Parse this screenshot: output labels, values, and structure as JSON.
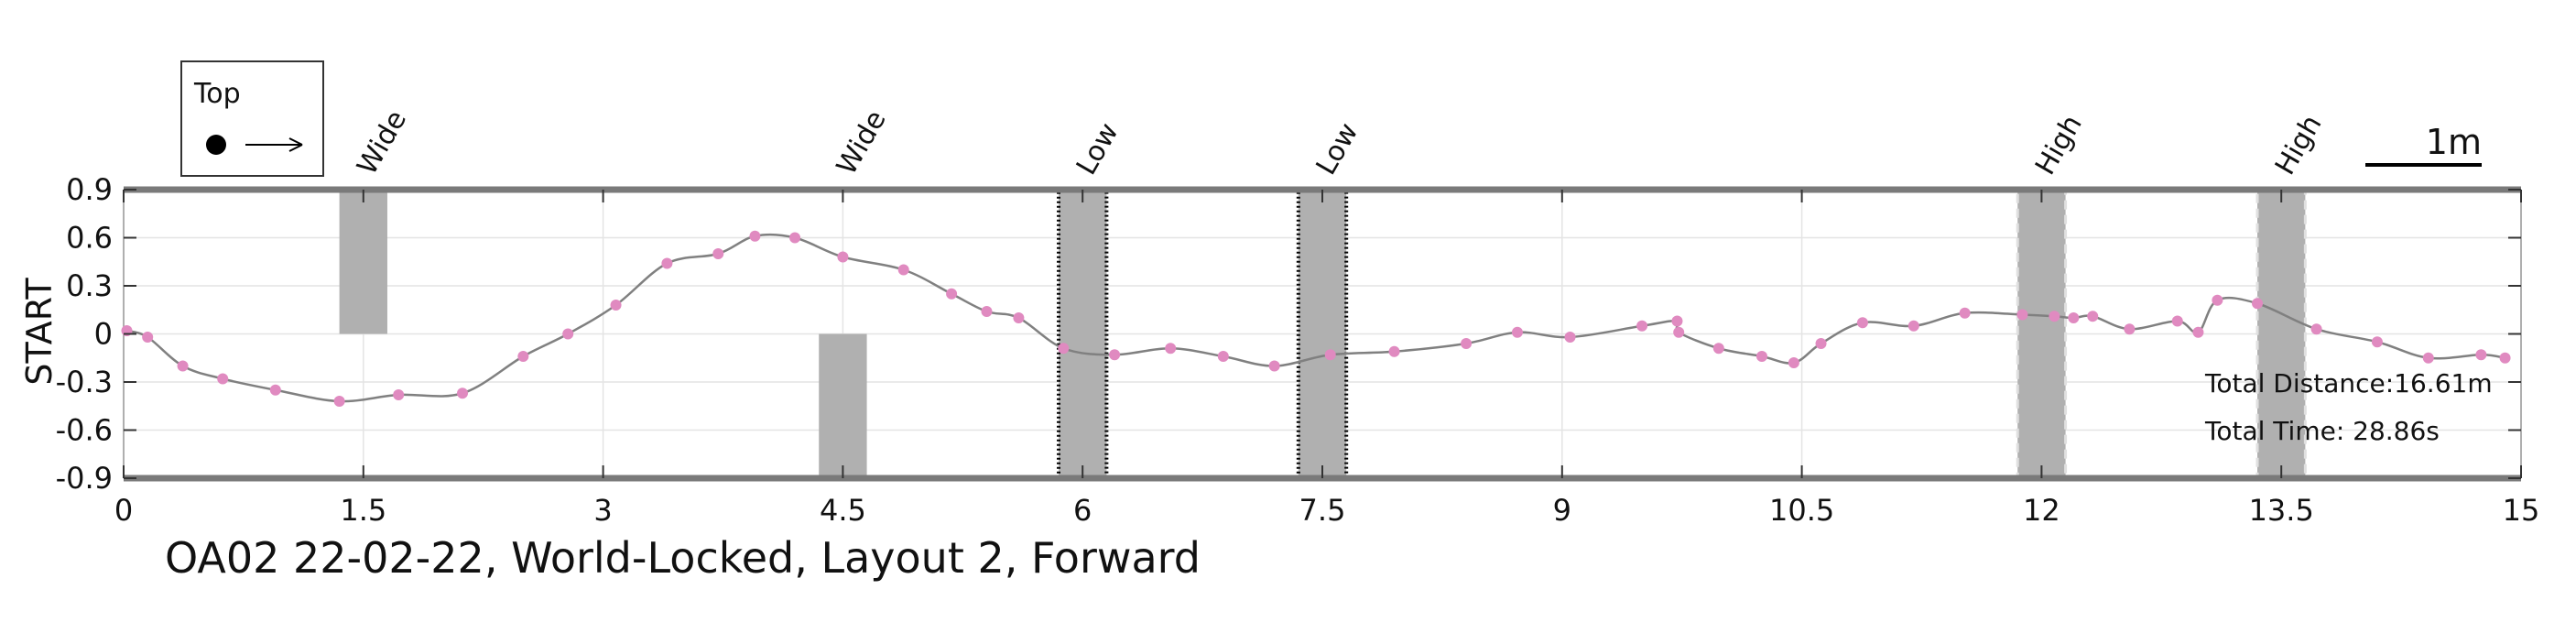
{
  "chart_data": {
    "type": "line",
    "title": "OA02 22-02-22, World-Locked, Layout 2, Forward",
    "xlabel": "",
    "ylabel": "START",
    "xlim": [
      0,
      15
    ],
    "ylim": [
      -0.9,
      0.9
    ],
    "x_ticks": [
      "0",
      "1.5",
      "3",
      "4.5",
      "6",
      "7.5",
      "9",
      "10.5",
      "12",
      "13.5",
      "15"
    ],
    "y_ticks": [
      "0.9",
      "0.6",
      "0.3",
      "0",
      "-0.3",
      "-0.6",
      "-0.9"
    ],
    "grid": true,
    "legend": {
      "label": "Top",
      "placement": "top-left"
    },
    "scale_bar_label": "1m",
    "colors": {
      "path": "#808080",
      "point": "#e08ac0",
      "obstacle": "#b0b0b0",
      "frame": "#7a7a7a"
    },
    "series": [
      {
        "x": [
          0.02,
          0.15,
          0.37,
          0.62,
          0.95,
          1.35,
          1.72,
          2.12,
          2.5,
          2.78,
          3.08,
          3.4,
          3.72,
          3.95,
          4.2,
          4.5,
          4.88,
          5.18,
          5.4,
          5.6,
          5.88,
          6.2,
          6.55,
          6.88,
          7.2,
          7.55,
          7.95,
          8.4,
          8.72,
          9.05,
          9.5,
          9.72,
          9.73,
          9.98,
          10.25,
          10.45,
          10.62,
          10.88,
          11.2,
          11.52,
          11.88,
          12.08,
          12.2,
          12.32,
          12.55,
          12.85,
          12.98,
          13.1,
          13.35,
          13.72,
          14.1,
          14.42,
          14.75,
          14.9
        ],
        "y": [
          0.02,
          -0.02,
          -0.2,
          -0.28,
          -0.35,
          -0.42,
          -0.38,
          -0.37,
          -0.14,
          0.0,
          0.18,
          0.44,
          0.5,
          0.61,
          0.6,
          0.48,
          0.4,
          0.25,
          0.14,
          0.1,
          -0.09,
          -0.13,
          -0.09,
          -0.14,
          -0.2,
          -0.13,
          -0.11,
          -0.06,
          0.01,
          -0.02,
          0.05,
          0.08,
          0.01,
          -0.09,
          -0.14,
          -0.18,
          -0.06,
          0.07,
          0.05,
          0.13,
          0.12,
          0.11,
          0.1,
          0.11,
          0.03,
          0.08,
          0.01,
          0.21,
          0.19,
          0.03,
          -0.05,
          -0.15,
          -0.13,
          -0.15
        ]
      }
    ],
    "obstacles": [
      {
        "label": "Wide",
        "x_start": 1.35,
        "x_end": 1.65,
        "y_bottom": 0,
        "y_top": 0.9,
        "style": "solid"
      },
      {
        "label": "Wide",
        "x_start": 4.35,
        "x_end": 4.65,
        "y_bottom": -0.9,
        "y_top": 0,
        "style": "solid"
      },
      {
        "label": "Low",
        "x_start": 5.85,
        "x_end": 6.15,
        "y_bottom": -0.9,
        "y_top": 0.9,
        "style": "dotted"
      },
      {
        "label": "Low",
        "x_start": 7.35,
        "x_end": 7.65,
        "y_bottom": -0.9,
        "y_top": 0.9,
        "style": "dotted"
      },
      {
        "label": "High",
        "x_start": 11.85,
        "x_end": 12.15,
        "y_bottom": -0.9,
        "y_top": 0.9,
        "style": "dashed"
      },
      {
        "label": "High",
        "x_start": 13.35,
        "x_end": 13.65,
        "y_bottom": -0.9,
        "y_top": 0.9,
        "style": "dashed"
      }
    ],
    "annotations": [
      "Total Distance:16.61m",
      "Total Time: 28.86s"
    ]
  }
}
